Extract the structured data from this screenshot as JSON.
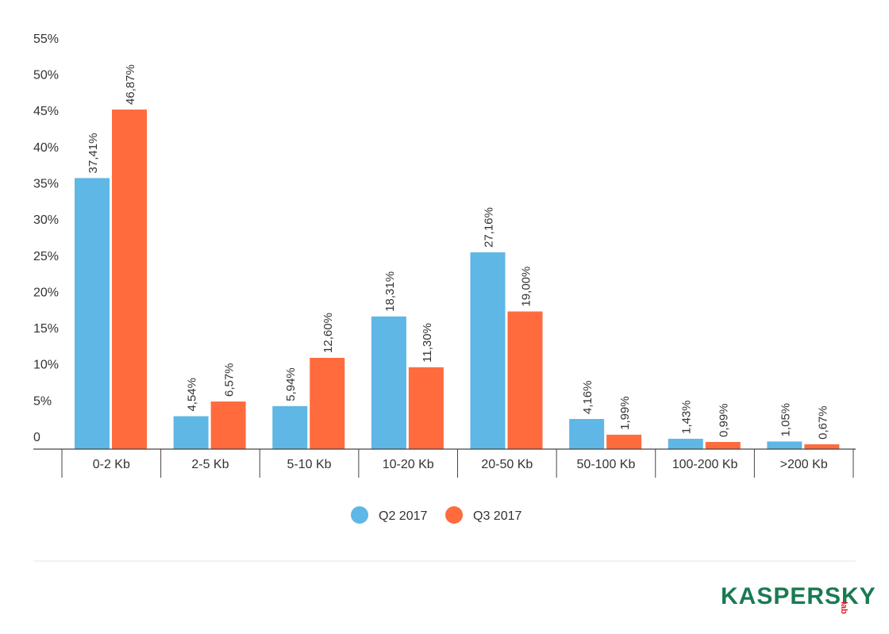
{
  "chart_data": {
    "type": "bar",
    "categories": [
      "0-2 Kb",
      "2-5 Kb",
      "5-10 Kb",
      "10-20 Kb",
      "20-50 Kb",
      "50-100 Kb",
      "100-200 Kb",
      ">200 Kb"
    ],
    "series": [
      {
        "name": "Q2 2017",
        "color": "#5eb7e4",
        "values": [
          37.41,
          4.54,
          5.94,
          18.31,
          27.16,
          4.16,
          1.43,
          1.05
        ],
        "labels": [
          "37,41%",
          "4,54%",
          "5,94%",
          "18,31%",
          "27,16%",
          "4,16%",
          "1,43%",
          "1,05%"
        ]
      },
      {
        "name": "Q3 2017",
        "color": "#ff6b3d",
        "values": [
          46.87,
          6.57,
          12.6,
          11.3,
          19.0,
          1.99,
          0.99,
          0.67
        ],
        "labels": [
          "46,87%",
          "6,57%",
          "12,60%",
          "11,30%",
          "19,00%",
          "1,99%",
          "0,99%",
          "0,67%"
        ]
      }
    ],
    "y_ticks": [
      "0",
      "5%",
      "10%",
      "15%",
      "20%",
      "25%",
      "30%",
      "35%",
      "40%",
      "45%",
      "50%",
      "55%"
    ],
    "ylim": [
      0,
      55
    ],
    "grid": false,
    "legend_position": "bottom-center"
  },
  "logo": {
    "text": "KASPERSKY",
    "suffix": "lab",
    "color": "#1a7a52",
    "accent": "#e11d28"
  }
}
